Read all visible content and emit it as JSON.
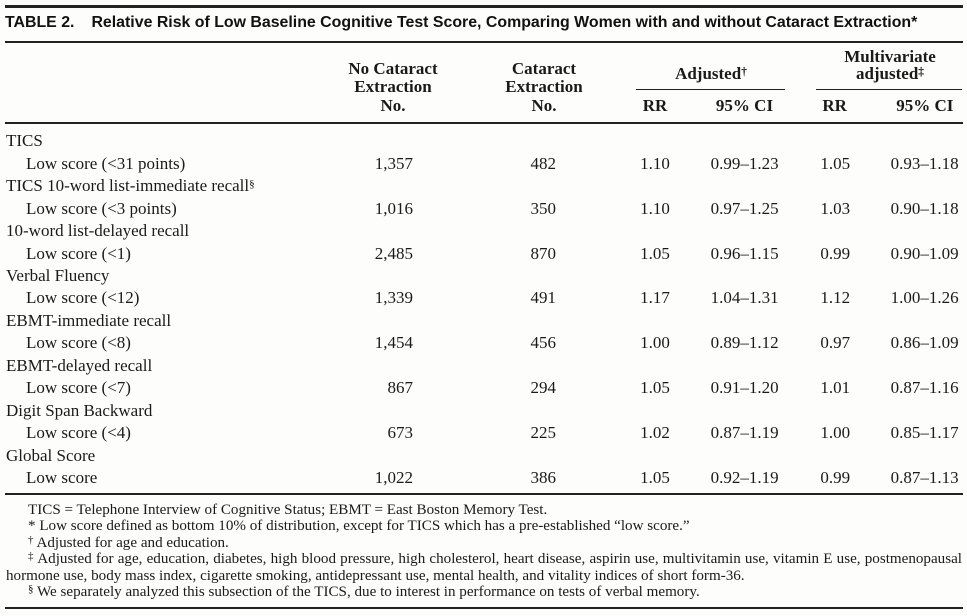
{
  "title": {
    "label": "TABLE 2.",
    "text": "Relative Risk of Low Baseline Cognitive Test Score, Comparing Women with and without Cataract Extraction*"
  },
  "header": {
    "no_cataract_lines": [
      "No Cataract",
      "Extraction",
      "No."
    ],
    "cataract_lines": [
      "Cataract",
      "Extraction",
      "No."
    ],
    "adjusted": {
      "label": "Adjusted",
      "marker": "†"
    },
    "multivariate": {
      "line1": "Multivariate",
      "line2": "adjusted",
      "marker": "‡"
    },
    "rr": "RR",
    "ci": "95% CI"
  },
  "rows": [
    {
      "label": "TICS",
      "indent": false
    },
    {
      "label": "Low score (<31 points)",
      "indent": true,
      "no_cataract": "1,357",
      "cataract": "482",
      "adj_rr": "1.10",
      "adj_ci": "0.99–1.23",
      "multi_rr": "1.05",
      "multi_ci": "0.93–1.18"
    },
    {
      "label": "TICS 10-word list-immediate recall",
      "sup": "§",
      "indent": false
    },
    {
      "label": "Low score (<3 points)",
      "indent": true,
      "no_cataract": "1,016",
      "cataract": "350",
      "adj_rr": "1.10",
      "adj_ci": "0.97–1.25",
      "multi_rr": "1.03",
      "multi_ci": "0.90–1.18"
    },
    {
      "label": "10-word list-delayed recall",
      "indent": false
    },
    {
      "label": "Low score (<1)",
      "indent": true,
      "no_cataract": "2,485",
      "cataract": "870",
      "adj_rr": "1.05",
      "adj_ci": "0.96–1.15",
      "multi_rr": "0.99",
      "multi_ci": "0.90–1.09"
    },
    {
      "label": "Verbal Fluency",
      "indent": false
    },
    {
      "label": "Low score (<12)",
      "indent": true,
      "no_cataract": "1,339",
      "cataract": "491",
      "adj_rr": "1.17",
      "adj_ci": "1.04–1.31",
      "multi_rr": "1.12",
      "multi_ci": "1.00–1.26"
    },
    {
      "label": "EBMT-immediate recall",
      "indent": false
    },
    {
      "label": "Low score (<8)",
      "indent": true,
      "no_cataract": "1,454",
      "cataract": "456",
      "adj_rr": "1.00",
      "adj_ci": "0.89–1.12",
      "multi_rr": "0.97",
      "multi_ci": "0.86–1.09"
    },
    {
      "label": "EBMT-delayed recall",
      "indent": false
    },
    {
      "label": "Low score (<7)",
      "indent": true,
      "no_cataract": "867",
      "cataract": "294",
      "adj_rr": "1.05",
      "adj_ci": "0.91–1.20",
      "multi_rr": "1.01",
      "multi_ci": "0.87–1.16"
    },
    {
      "label": "Digit Span Backward",
      "indent": false
    },
    {
      "label": "Low score (<4)",
      "indent": true,
      "no_cataract": "673",
      "cataract": "225",
      "adj_rr": "1.02",
      "adj_ci": "0.87–1.19",
      "multi_rr": "1.00",
      "multi_ci": "0.85–1.17"
    },
    {
      "label": "Global Score",
      "indent": false
    },
    {
      "label": "Low score",
      "indent": true,
      "no_cataract": "1,022",
      "cataract": "386",
      "adj_rr": "1.05",
      "adj_ci": "0.92–1.19",
      "multi_rr": "0.99",
      "multi_ci": "0.87–1.13"
    }
  ],
  "footnotes": [
    {
      "marker": "",
      "sup": false,
      "justify": false,
      "text": "TICS = Telephone Interview of Cognitive Status; EBMT = East Boston Memory Test."
    },
    {
      "marker": "*",
      "sup": false,
      "justify": false,
      "text": "Low score defined as bottom 10% of distribution, except for TICS which has a pre-established “low score.”"
    },
    {
      "marker": "†",
      "sup": true,
      "justify": false,
      "text": "Adjusted for age and education."
    },
    {
      "marker": "‡",
      "sup": true,
      "justify": true,
      "text": "Adjusted for age, education, diabetes, high blood pressure, high cholesterol, heart disease, aspirin use, multivitamin use, vitamin E use, postmenopausal hormone use, body mass index, cigarette smoking, antidepressant use, mental health, and vitality indices of short form-36."
    },
    {
      "marker": "§",
      "sup": true,
      "justify": false,
      "text": "We separately analyzed this subsection of the TICS, due to interest in performance on tests of verbal memory."
    }
  ],
  "colors": {
    "background": "#fdfdfc",
    "text": "#1a1a1a",
    "rule": "#222222"
  }
}
